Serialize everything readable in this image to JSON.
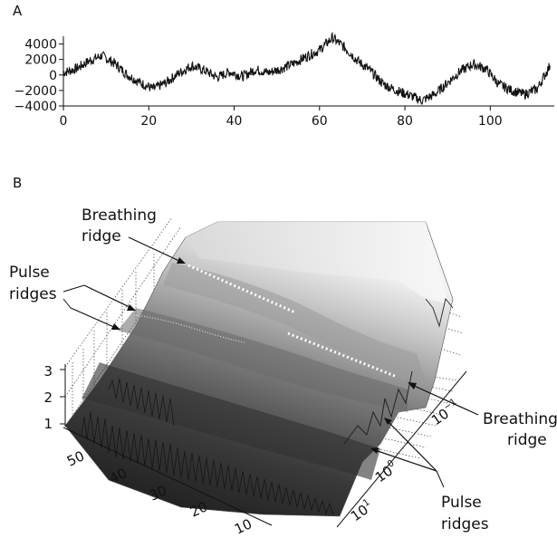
{
  "chart_data": [
    {
      "type": "line",
      "panel_label": "A",
      "xlim": [
        0,
        115
      ],
      "ylim": [
        -4000,
        5000
      ],
      "x_ticks": [
        0,
        20,
        40,
        60,
        80,
        100
      ],
      "y_ticks": [
        4000,
        2000,
        0,
        -2000,
        -4000
      ],
      "y_tick_labels": [
        "4000",
        "2000",
        "0",
        "−2000",
        "−4000"
      ],
      "grid": false,
      "series": [
        {
          "x": [
            0,
            3,
            6,
            9,
            12,
            15,
            18,
            21,
            24,
            27,
            30,
            33,
            36,
            39,
            42,
            45,
            48,
            51,
            54,
            57,
            60,
            63,
            66,
            69,
            72,
            75,
            78,
            81,
            84,
            87,
            90,
            93,
            96,
            99,
            102,
            105,
            108,
            111,
            114
          ],
          "y": [
            300,
            800,
            1800,
            2500,
            1500,
            0,
            -1000,
            -1800,
            -1000,
            200,
            1200,
            600,
            -300,
            400,
            -200,
            700,
            300,
            800,
            1500,
            2400,
            3200,
            4800,
            3500,
            1800,
            500,
            -1200,
            -2000,
            -2600,
            -3300,
            -2500,
            -1000,
            500,
            1400,
            800,
            -1200,
            -2000,
            -2500,
            -1800,
            1200
          ]
        }
      ]
    },
    {
      "type": "surface3d",
      "panel_label": "B",
      "z_ticks": [
        "1",
        "2",
        "3"
      ],
      "time_ticks": [
        "10",
        "20",
        "30",
        "40",
        "50"
      ],
      "freq_tick_bases": [
        "10",
        "10",
        "10"
      ],
      "freq_tick_exps": [
        "−1",
        "0",
        "1"
      ],
      "annotations": [
        {
          "line1": "Breathing",
          "line2": "ridge"
        },
        {
          "line1": "Pulse",
          "line2": "ridges"
        },
        {
          "line1": "Breathing",
          "line2": "ridge"
        },
        {
          "line1": "Pulse",
          "line2": "ridges"
        }
      ]
    }
  ]
}
